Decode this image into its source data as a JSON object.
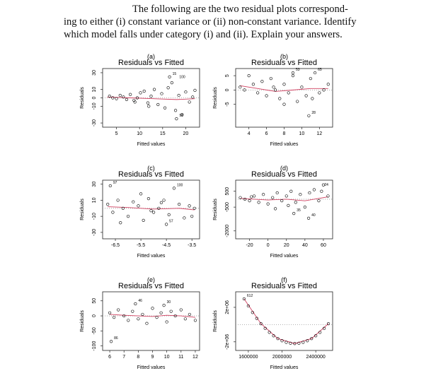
{
  "text": [
    "The following are the two residual plots correspond-",
    "ing to either (i) constant variance or (ii) non-constant variance.  Identify",
    "which model falls under category (i) and (ii). Explain your answers."
  ],
  "chart_data": [
    {
      "type": "scatter",
      "panel": "(a)",
      "title": "Residuals vs Fitted",
      "xlabel": "Fitted values",
      "ylabel": "Residuals",
      "color": "#000000",
      "x": [
        3.5,
        4.2,
        5,
        5.8,
        6.5,
        7.2,
        8,
        8.8,
        9.5,
        10.2,
        11,
        11.8,
        12.5,
        13.2,
        14,
        14.8,
        15.5,
        16.2,
        17,
        17.8,
        18.5,
        19.2,
        20,
        20.8,
        21.5,
        22,
        16.5,
        18,
        12,
        9
      ],
      "y": [
        2,
        0,
        -1,
        3,
        1,
        -2,
        4,
        -3,
        0,
        6,
        8,
        -6,
        2,
        10,
        -8,
        5,
        -12,
        12,
        18,
        -15,
        3,
        -20,
        7,
        -5,
        1,
        9,
        25,
        -25,
        -10,
        -5
      ],
      "xlim": [
        2,
        23
      ],
      "ylim": [
        -35,
        35
      ],
      "xticks": [
        5,
        10,
        15,
        20
      ],
      "yticks": [
        -30,
        -10,
        0,
        10,
        30
      ],
      "annotations": [
        {
          "x": 16.5,
          "y": 25,
          "label": "15"
        },
        {
          "x": 18,
          "y": 21,
          "label": "100"
        },
        {
          "x": 18,
          "y": -25,
          "label": "98"
        }
      ],
      "smooth": {
        "color": "#d04060",
        "x": [
          3,
          8,
          13,
          18,
          22
        ],
        "y": [
          1,
          0,
          -1,
          -2,
          -1
        ]
      }
    },
    {
      "type": "scatter",
      "panel": "(b)",
      "title": "Residuals vs Fitted",
      "xlabel": "Fitted values",
      "ylabel": "Residuals",
      "color": "#000000",
      "x": [
        3,
        3.5,
        4,
        4.5,
        5,
        5.5,
        6,
        6.5,
        7,
        7.5,
        8,
        8.5,
        9,
        9.5,
        10,
        10.5,
        11,
        11.5,
        12,
        12.5,
        13,
        9,
        11.2,
        8,
        6.8,
        10.8
      ],
      "y": [
        1,
        0,
        5,
        2,
        -1,
        3,
        -2,
        4,
        0,
        -3,
        2,
        -1,
        5,
        -4,
        1,
        -2,
        4,
        6,
        -1,
        0,
        2,
        6,
        -3,
        -5,
        1,
        -9
      ],
      "xlim": [
        2.5,
        13.5
      ],
      "ylim": [
        -13,
        7.5
      ],
      "xticks": [
        4,
        6,
        8,
        10,
        12
      ],
      "yticks": [
        -5,
        0,
        5
      ],
      "annotations": [
        {
          "x": 9,
          "y": 6,
          "label": "53"
        },
        {
          "x": 11.5,
          "y": 6,
          "label": "65"
        },
        {
          "x": 10.8,
          "y": -9,
          "label": "28"
        }
      ],
      "smooth": {
        "color": "#d04060",
        "x": [
          3,
          5,
          7,
          9,
          11,
          13
        ],
        "y": [
          1.5,
          0.5,
          -0.5,
          0,
          0.5,
          0.5
        ]
      }
    },
    {
      "type": "scatter",
      "panel": "(c)",
      "title": "Residuals vs Fitted",
      "xlabel": "Fitted values",
      "ylabel": "Residuals",
      "color": "#000000",
      "x": [
        -6.8,
        -6.6,
        -6.4,
        -6.2,
        -6,
        -5.8,
        -5.6,
        -5.4,
        -5.2,
        -5,
        -4.8,
        -4.6,
        -4.4,
        -4.2,
        -4,
        -3.8,
        -3.6,
        -3.4,
        -6.7,
        -5.5,
        -4.5,
        -3.5,
        -6.3,
        -5.1,
        -4.7
      ],
      "y": [
        5,
        -5,
        10,
        0,
        -10,
        8,
        3,
        -15,
        12,
        -5,
        0,
        10,
        -8,
        25,
        5,
        -12,
        3,
        0,
        28,
        18,
        -20,
        -10,
        -18,
        -3,
        7
      ],
      "xlim": [
        -7,
        -3.2
      ],
      "ylim": [
        -38,
        35
      ],
      "xticks": [
        -6.5,
        -5.5,
        -4.5,
        -3.5
      ],
      "yticks": [
        -30,
        -10,
        10,
        30
      ],
      "annotations": [
        {
          "x": -6.7,
          "y": 28,
          "label": "97"
        },
        {
          "x": -4.2,
          "y": 25,
          "label": "100"
        },
        {
          "x": -4.5,
          "y": -20,
          "label": "57"
        }
      ],
      "smooth": {
        "color": "#d04060",
        "x": [
          -6.8,
          -6,
          -5,
          -4,
          -3.4
        ],
        "y": [
          2,
          1,
          -1,
          0,
          -2
        ]
      }
    },
    {
      "type": "scatter",
      "panel": "(d)",
      "title": "Residuals vs Fitted",
      "xlabel": "Fitted values",
      "ylabel": "Residuals",
      "color": "#000000",
      "x": [
        -30,
        -25,
        -20,
        -15,
        -10,
        -5,
        0,
        5,
        10,
        15,
        20,
        25,
        30,
        35,
        40,
        45,
        50,
        55,
        60,
        65,
        -18,
        8,
        22,
        44,
        58,
        28
      ],
      "y": [
        100,
        0,
        -100,
        200,
        -200,
        300,
        -300,
        100,
        400,
        -100,
        200,
        500,
        -200,
        300,
        -500,
        400,
        600,
        -100,
        900,
        200,
        150,
        -600,
        -400,
        -1200,
        500,
        -900
      ],
      "xlim": [
        -35,
        70
      ],
      "ylim": [
        -2500,
        1200
      ],
      "xticks": [
        -20,
        0,
        20,
        40,
        60
      ],
      "yticks": [
        -2000,
        -500,
        500
      ],
      "annotations": [
        {
          "x": 58,
          "y": 700,
          "label": "24"
        },
        {
          "x": 28,
          "y": -900,
          "label": "35"
        },
        {
          "x": 44,
          "y": -1200,
          "label": "40"
        }
      ],
      "smooth": {
        "color": "#d04060",
        "x": [
          -30,
          0,
          20,
          40,
          65
        ],
        "y": [
          50,
          -50,
          0,
          -100,
          150
        ]
      }
    },
    {
      "type": "scatter",
      "panel": "(e)",
      "title": "Residuals vs Fitted",
      "xlabel": "Fitted values",
      "ylabel": "Residuals",
      "color": "#000000",
      "x": [
        6,
        6.3,
        6.6,
        7,
        7.3,
        7.6,
        8,
        8.3,
        8.6,
        9,
        9.3,
        9.6,
        10,
        10.3,
        10.6,
        11,
        11.3,
        11.6,
        12,
        7.8,
        9.8,
        6.1
      ],
      "y": [
        10,
        -5,
        20,
        0,
        -15,
        15,
        -10,
        5,
        -25,
        25,
        -5,
        10,
        -20,
        15,
        0,
        20,
        -10,
        5,
        -15,
        40,
        35,
        -85
      ],
      "xlim": [
        5.5,
        12.3
      ],
      "ylim": [
        -115,
        80
      ],
      "xticks": [
        6,
        7,
        8,
        9,
        10,
        11,
        12
      ],
      "yticks": [
        -100,
        -50,
        0,
        50
      ],
      "annotations": [
        {
          "x": 7.8,
          "y": 40,
          "label": "46"
        },
        {
          "x": 9.8,
          "y": 35,
          "label": "30"
        },
        {
          "x": 6.1,
          "y": -85,
          "label": "86"
        }
      ],
      "smooth": {
        "color": "#d04060",
        "x": [
          6,
          7,
          8,
          9,
          10,
          11,
          12
        ],
        "y": [
          5,
          2,
          0,
          -2,
          2,
          0,
          -5
        ]
      }
    },
    {
      "type": "scatter",
      "panel": "(f)",
      "title": "Residuals vs Fitted",
      "xlabel": "Fitted values",
      "ylabel": "Residuals",
      "color": "#000000",
      "x": [
        1550000,
        1600000,
        1650000,
        1700000,
        1750000,
        1800000,
        1850000,
        1900000,
        1950000,
        2000000,
        2050000,
        2100000,
        2150000,
        2200000,
        2250000,
        2300000,
        2350000,
        2400000,
        2450000,
        2500000,
        2550000
      ],
      "y": [
        2984000,
        2156000,
        1400000,
        716000,
        104000,
        -436000,
        -904000,
        -1300000,
        -1624000,
        -1876000,
        -2056000,
        -2164000,
        -2200000,
        -2164000,
        -2056000,
        -1876000,
        -1624000,
        -1300000,
        -904000,
        -436000,
        104000
      ],
      "xlim": [
        1450000,
        2600000
      ],
      "ylim": [
        -3000000,
        3800000
      ],
      "xticks": [
        {
          "value": 1600000,
          "label": "1600000"
        },
        {
          "value": 2000000,
          "label": "2000000"
        },
        {
          "value": 2400000,
          "label": "2400000"
        }
      ],
      "yticks": [
        {
          "value": -2000000,
          "label": "-2e+06"
        },
        {
          "value": 2000000,
          "label": "2e+06"
        }
      ],
      "annotations": [
        {
          "x": 1550000,
          "y": 2984000,
          "label": "612"
        }
      ],
      "smooth": {
        "color": "#d04060",
        "x": [
          1550000,
          1750000,
          1950000,
          2150000,
          2350000,
          2550000
        ],
        "y": [
          2984000,
          104000,
          -1624000,
          -2200000,
          -1624000,
          104000
        ]
      }
    }
  ]
}
